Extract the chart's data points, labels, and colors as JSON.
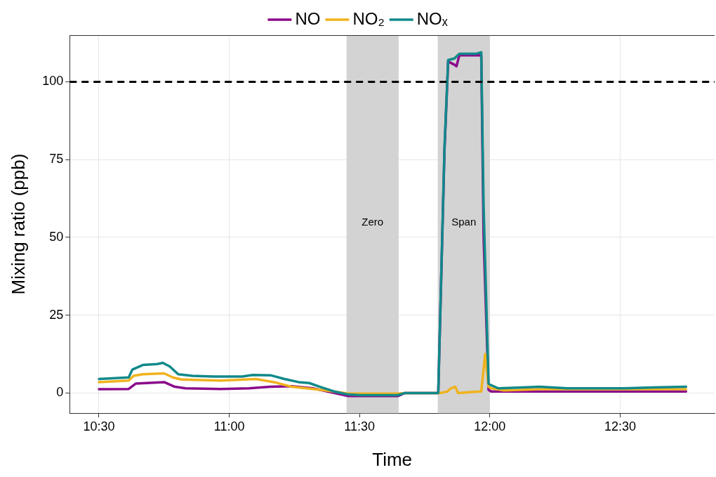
{
  "chart_data": {
    "type": "line",
    "xlabel": "Time",
    "ylabel": "Mixing ratio (ppb)",
    "xlim": [
      10.3875,
      12.8625
    ],
    "ylim": [
      -6.5,
      115
    ],
    "xticks": [
      {
        "value": 10.5,
        "label": "10:30"
      },
      {
        "value": 11,
        "label": "11:00"
      },
      {
        "value": 11.5,
        "label": "11:30"
      },
      {
        "value": 12,
        "label": "12:00"
      },
      {
        "value": 12.5,
        "label": "12:30"
      }
    ],
    "yticks": [
      0,
      25,
      50,
      75,
      100
    ],
    "grid": true,
    "legend": "top",
    "line_style": "solid",
    "marker": "none",
    "ref_lines": [
      {
        "axis": "y",
        "value": 100,
        "color": "#000000",
        "line_style": "dashed"
      }
    ],
    "bands": [
      {
        "axis": "x",
        "from": 11.45,
        "to": 11.65,
        "label": "Zero",
        "color": "#d3d3d3"
      },
      {
        "axis": "x",
        "from": 11.8,
        "to": 12.0,
        "label": "Span",
        "color": "#d3d3d3"
      }
    ],
    "series": [
      {
        "name": "NO",
        "color": "#8b0a8b",
        "x": [
          10.5,
          10.614,
          10.641,
          10.75,
          10.791,
          10.832,
          10.967,
          11.076,
          11.158,
          11.239,
          11.321,
          11.402,
          11.457,
          11.647,
          11.674,
          11.802,
          11.826,
          11.84,
          11.864,
          11.872,
          11.883,
          11.967,
          11.976,
          11.995,
          12.005,
          12.753
        ],
        "values": [
          1.2,
          1.3,
          3,
          3.5,
          2,
          1.5,
          1.3,
          1.5,
          2,
          2.2,
          1.5,
          0,
          -1,
          -1,
          0,
          0,
          78,
          106.5,
          105.5,
          105,
          108.5,
          108.5,
          50,
          1,
          0.5,
          0.5
        ]
      },
      {
        "name": "NO₂",
        "color": "#f0b21e",
        "x": [
          10.5,
          10.614,
          10.633,
          10.668,
          10.75,
          10.783,
          10.818,
          10.967,
          11.103,
          11.171,
          11.239,
          11.321,
          11.402,
          11.457,
          11.647,
          11.674,
          11.81,
          11.837,
          11.851,
          11.867,
          11.878,
          11.932,
          11.967,
          11.982,
          11.995,
          12.005,
          12.054,
          12.19,
          12.753
        ],
        "values": [
          3.5,
          4,
          5.5,
          6,
          6.3,
          5,
          4.3,
          4,
          4.5,
          3.5,
          2,
          1.3,
          0.5,
          -0.2,
          -0.2,
          0,
          0,
          0.5,
          1.5,
          2,
          0,
          0.3,
          0.5,
          12.5,
          2,
          1.5,
          0.8,
          1.2,
          1.2
        ]
      },
      {
        "name": "NOₓ",
        "color": "#11898a",
        "x": [
          10.5,
          10.614,
          10.628,
          10.668,
          10.723,
          10.745,
          10.772,
          10.804,
          10.859,
          10.94,
          11.049,
          11.09,
          11.158,
          11.212,
          11.266,
          11.307,
          11.348,
          11.402,
          11.457,
          11.511,
          11.647,
          11.674,
          11.802,
          11.826,
          11.84,
          11.864,
          11.883,
          11.946,
          11.967,
          11.976,
          11.995,
          12.005,
          12.033,
          12.19,
          12.299,
          12.516,
          12.625,
          12.753
        ],
        "values": [
          4.5,
          5,
          7.5,
          9,
          9.3,
          9.7,
          8.5,
          6,
          5.5,
          5.3,
          5.3,
          5.8,
          5.7,
          4.5,
          3.5,
          3.2,
          2,
          0.5,
          -0.5,
          -0.7,
          -0.7,
          0,
          0,
          79,
          107,
          107.5,
          109,
          109,
          109.5,
          60,
          3,
          2.5,
          1.5,
          2,
          1.5,
          1.5,
          1.8,
          2
        ]
      }
    ]
  }
}
